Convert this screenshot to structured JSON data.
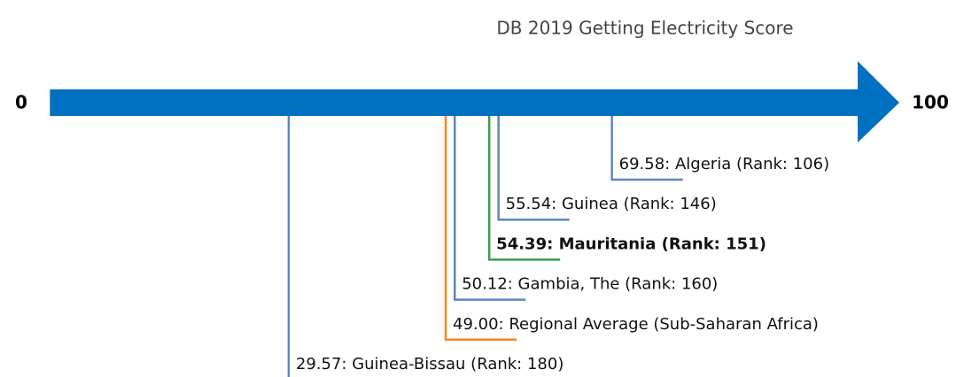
{
  "chart_data": {
    "type": "number-line",
    "title": "DB 2019 Getting Electricity Score",
    "xlim": [
      0,
      100
    ],
    "xticks": [
      0,
      100
    ],
    "axis_color": "#0070c0",
    "values": [
      69.58,
      55.54,
      54.39,
      50.12,
      49.0,
      29.57
    ],
    "value_labels": [
      "69.58: Algeria (Rank: 106)",
      "55.54: Guinea (Rank: 146)",
      "54.39: Mauritania (Rank: 151)",
      "50.12: Gambia, The (Rank: 160)",
      "49.00: Regional Average (Sub-Saharan Africa)",
      "29.57: Guinea-Bissau (Rank: 180)"
    ],
    "colors": [
      "#5b86c5",
      "#5b86c5",
      "#3a9e45",
      "#5b86c5",
      "#f08a24",
      "#5b86c5"
    ],
    "bold": [
      false,
      false,
      true,
      false,
      false,
      false
    ]
  }
}
